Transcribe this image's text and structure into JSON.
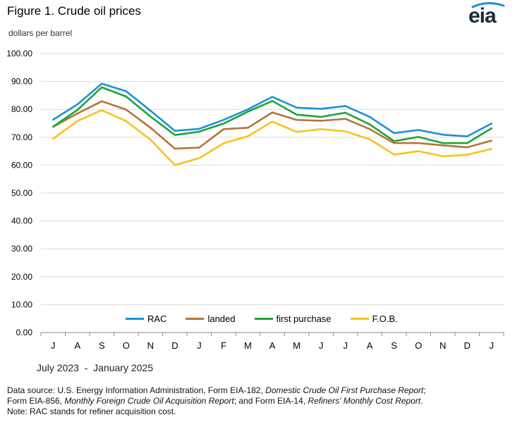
{
  "header": {
    "title": "Figure 1. Crude oil prices",
    "units": "dollars per barrel"
  },
  "logo": {
    "text": "eia",
    "accent_color": "#1E8FD0"
  },
  "footer": {
    "date_range": "July 2023  -  January 2025",
    "source_prefix": "Data source: U.S. Energy Information  Administration, Form EIA-182, ",
    "source_italic1": "Domestic Crude Oil First Purchase Report",
    "source_mid1": ";",
    "source_line2_prefix": "Form EIA-856, ",
    "source_italic2": "Monthly Foreign Crude Oil Acquisition Report",
    "source_mid2": "; and Form EIA-14, ",
    "source_italic3": "Refiners' Monthly Cost Report",
    "source_end": ".",
    "note": "Note: RAC stands for refiner acquisition cost."
  },
  "chart_data": {
    "type": "line",
    "categories": [
      "J",
      "A",
      "S",
      "O",
      "N",
      "D",
      "J",
      "F",
      "M",
      "A",
      "M",
      "J",
      "J",
      "A",
      "S",
      "O",
      "N",
      "D",
      "J"
    ],
    "ylim": [
      0,
      100
    ],
    "yticks": [
      "0.00",
      "10.00",
      "20.00",
      "30.00",
      "40.00",
      "50.00",
      "60.00",
      "70.00",
      "80.00",
      "90.00",
      "100.00"
    ],
    "grid": true,
    "legend_position": "bottom",
    "series": [
      {
        "name": "RAC",
        "color": "#1E90D6",
        "values": [
          76.3,
          81.8,
          89.2,
          86.5,
          79.5,
          72.3,
          73.0,
          76.2,
          80.0,
          84.5,
          80.6,
          80.2,
          81.2,
          77.3,
          71.5,
          72.6,
          70.9,
          70.3,
          74.9
        ]
      },
      {
        "name": "landed",
        "color": "#B5733A",
        "values": [
          73.8,
          78.5,
          82.9,
          79.9,
          73.4,
          65.9,
          66.3,
          72.9,
          73.4,
          78.9,
          76.2,
          75.9,
          76.6,
          72.9,
          67.9,
          67.9,
          67.1,
          66.4,
          68.8
        ]
      },
      {
        "name": "first purchase",
        "color": "#1BA33A",
        "values": [
          73.8,
          79.8,
          87.9,
          84.6,
          77.4,
          70.8,
          72.0,
          74.9,
          79.2,
          83.0,
          78.1,
          77.3,
          78.8,
          74.6,
          68.6,
          70.1,
          67.9,
          67.9,
          73.2
        ]
      },
      {
        "name": "F.O.B.",
        "color": "#F7C31A",
        "values": [
          69.5,
          75.8,
          79.7,
          75.8,
          69.1,
          60.0,
          62.5,
          67.8,
          70.4,
          75.6,
          71.9,
          72.9,
          72.1,
          69.3,
          63.8,
          65.0,
          63.2,
          63.7,
          65.8
        ]
      }
    ]
  }
}
